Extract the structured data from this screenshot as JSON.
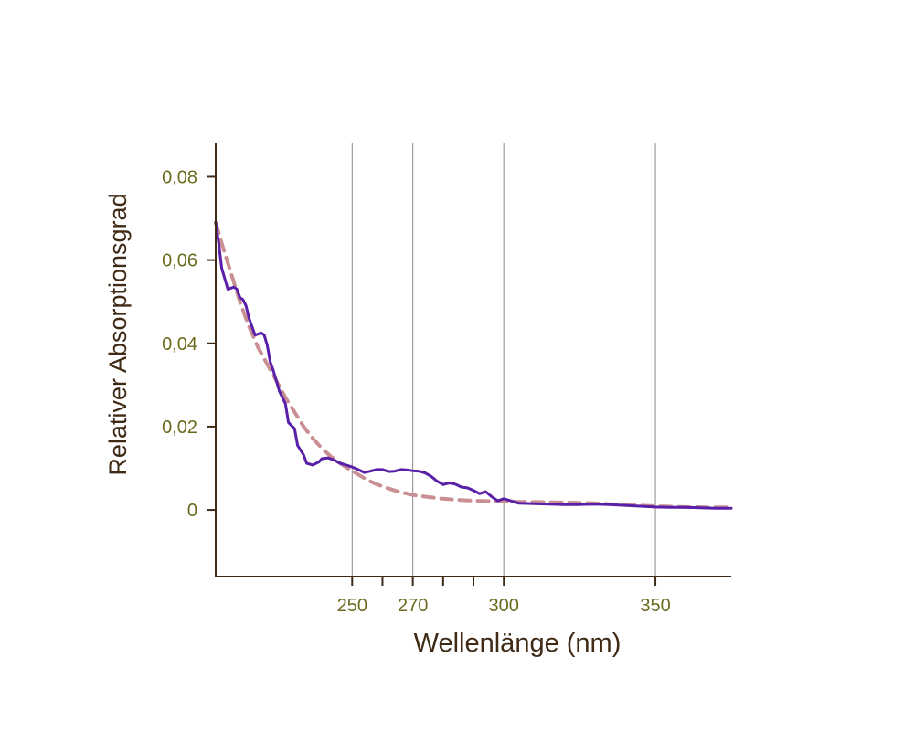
{
  "chart_data": {
    "type": "line",
    "xlabel": "Wellenlänge (nm)",
    "ylabel": "Relativer Absorptionsgrad",
    "xlim": [
      205,
      375
    ],
    "ylim": [
      -0.016,
      0.088
    ],
    "y_ticks": [
      {
        "value": 0.08,
        "label": "0,08"
      },
      {
        "value": 0.06,
        "label": "0,06"
      },
      {
        "value": 0.04,
        "label": "0,04"
      },
      {
        "value": 0.02,
        "label": "0,02"
      },
      {
        "value": 0,
        "label": "0"
      }
    ],
    "x_ticks": [
      {
        "value": 250,
        "label": "250"
      },
      {
        "value": 270,
        "label": "270"
      },
      {
        "value": 300,
        "label": "300"
      },
      {
        "value": 350,
        "label": "350"
      }
    ],
    "x_minor_ticks": [
      260,
      280,
      290
    ],
    "x_gridlines": [
      250,
      270,
      300,
      350
    ],
    "grid": "vertical",
    "series": [
      {
        "color": "#5a1fa8",
        "style": "solid",
        "x": [
          205,
          206,
          207,
          209,
          211,
          212,
          213,
          214,
          215,
          216,
          218,
          220,
          221,
          222,
          223,
          224,
          225,
          226,
          228,
          229,
          231,
          232,
          234,
          235,
          237,
          239,
          240,
          242,
          244,
          246,
          248,
          250,
          252,
          254,
          256,
          258,
          260,
          262,
          264,
          266,
          268,
          270,
          272,
          274,
          276,
          278,
          280,
          282,
          284,
          286,
          288,
          290,
          292,
          294,
          296,
          298,
          300,
          305,
          310,
          315,
          320,
          325,
          330,
          335,
          340,
          345,
          350,
          355,
          360,
          365,
          370,
          375
        ],
        "y": [
          0.069,
          0.064,
          0.058,
          0.053,
          0.0535,
          0.053,
          0.051,
          0.0505,
          0.049,
          0.046,
          0.042,
          0.0425,
          0.042,
          0.0395,
          0.0355,
          0.0335,
          0.031,
          0.0285,
          0.0255,
          0.021,
          0.0195,
          0.0155,
          0.0132,
          0.0112,
          0.0108,
          0.0115,
          0.0123,
          0.0125,
          0.012,
          0.0112,
          0.0108,
          0.0103,
          0.0097,
          0.009,
          0.0093,
          0.0097,
          0.0097,
          0.0092,
          0.0093,
          0.0097,
          0.0096,
          0.0094,
          0.0093,
          0.0089,
          0.0081,
          0.0069,
          0.0061,
          0.0065,
          0.0062,
          0.0055,
          0.0053,
          0.0047,
          0.0039,
          0.0044,
          0.0032,
          0.0022,
          0.0027,
          0.0016,
          0.0015,
          0.0014,
          0.0013,
          0.0013,
          0.0014,
          0.0013,
          0.0011,
          0.0009,
          0.0007,
          0.0006,
          0.0006,
          0.0005,
          0.0004,
          0.0004
        ]
      },
      {
        "color": "#c98f93",
        "style": "dashed",
        "x": [
          205,
          207,
          210,
          213,
          216,
          219,
          222,
          225,
          228,
          231,
          234,
          237,
          240,
          243,
          246,
          249,
          252,
          255,
          258,
          261,
          264,
          267,
          270,
          275,
          280,
          285,
          290,
          295,
          300,
          310,
          320,
          330,
          340,
          350,
          360,
          370,
          375
        ],
        "y": [
          0.069,
          0.064,
          0.057,
          0.05,
          0.044,
          0.039,
          0.035,
          0.031,
          0.027,
          0.0235,
          0.02,
          0.0172,
          0.0148,
          0.0128,
          0.0112,
          0.0098,
          0.0085,
          0.0072,
          0.0062,
          0.0054,
          0.0047,
          0.0041,
          0.0036,
          0.0031,
          0.0027,
          0.0024,
          0.0022,
          0.0021,
          0.002,
          0.0019,
          0.0018,
          0.0016,
          0.0012,
          0.0009,
          0.0007,
          0.0006,
          0.0006
        ]
      }
    ]
  }
}
